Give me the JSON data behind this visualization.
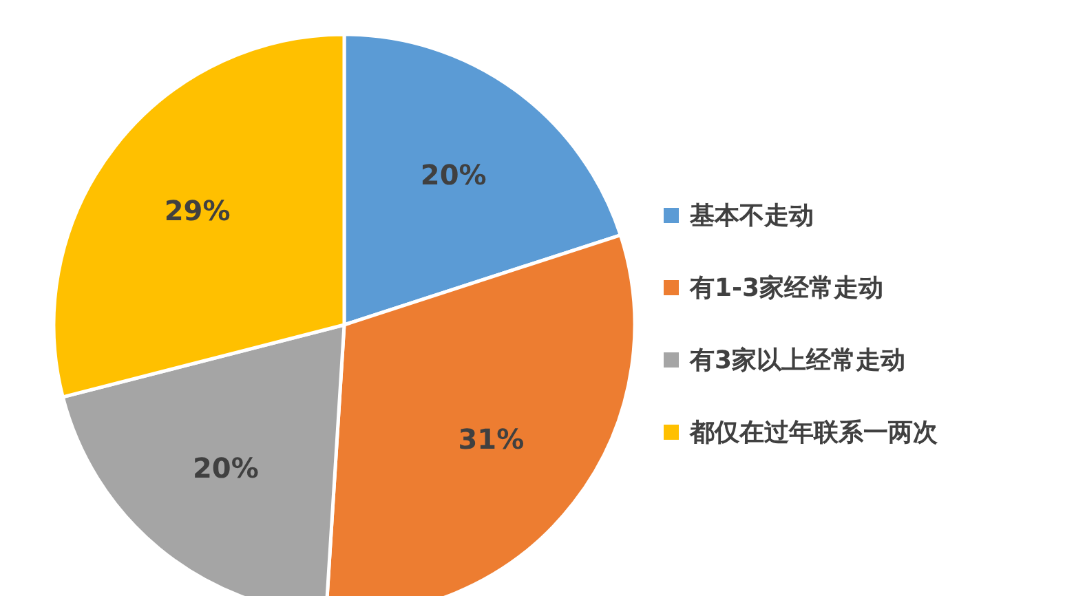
{
  "chart_data": {
    "type": "pie",
    "categories": [
      "基本不走动",
      "有1-3家经常走动",
      "有3家以上经常走动",
      "都仅在过年联系一两次"
    ],
    "values": [
      20,
      31,
      20,
      29
    ],
    "colors": [
      "#5b9bd5",
      "#ed7d31",
      "#a5a5a5",
      "#ffc000"
    ],
    "value_labels": [
      "20%",
      "31%",
      "20%",
      "29%"
    ],
    "legend": "right"
  }
}
